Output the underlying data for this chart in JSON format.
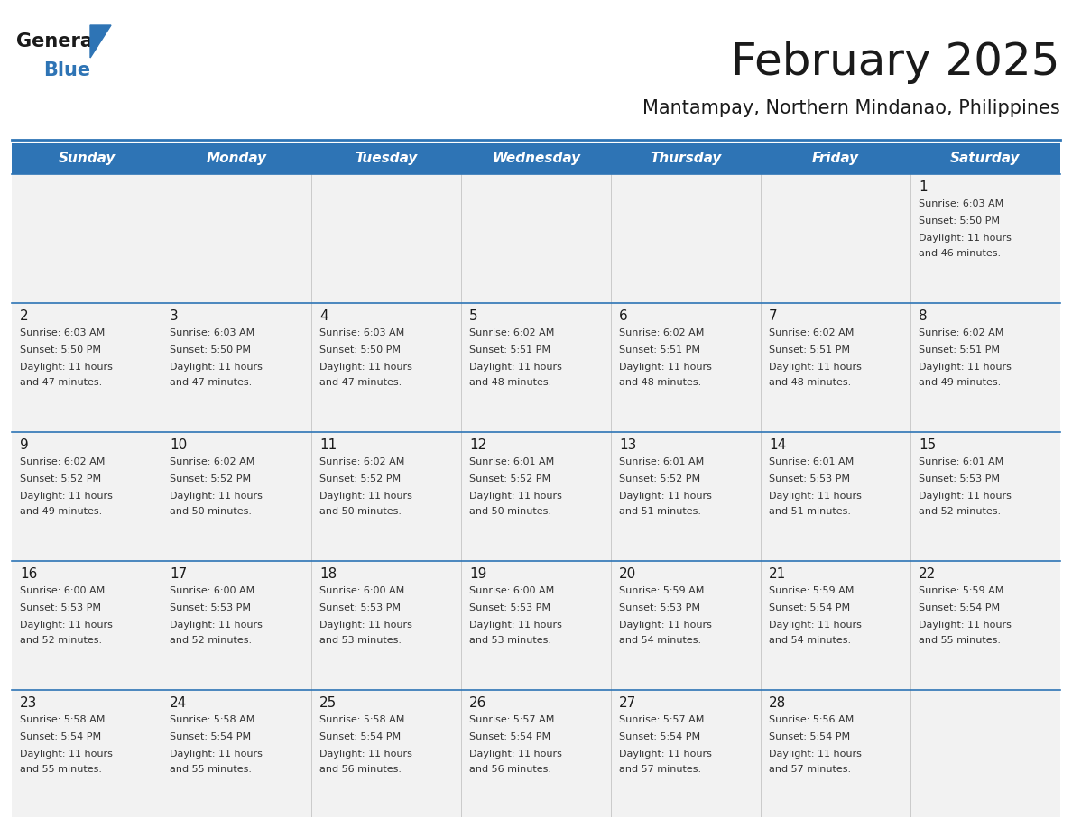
{
  "title": "February 2025",
  "subtitle": "Mantampay, Northern Mindanao, Philippines",
  "header_bg": "#2E74B5",
  "header_text_color": "#FFFFFF",
  "cell_bg": "#F2F2F2",
  "day_headers": [
    "Sunday",
    "Monday",
    "Tuesday",
    "Wednesday",
    "Thursday",
    "Friday",
    "Saturday"
  ],
  "title_color": "#1a1a1a",
  "subtitle_color": "#1a1a1a",
  "day_num_color": "#1a1a1a",
  "cell_text_color": "#333333",
  "logo_general_color": "#1a1a1a",
  "logo_blue_color": "#2E74B5",
  "separator_color": "#2E74B5",
  "line_color": "#2E74B5",
  "calendar": [
    [
      null,
      null,
      null,
      null,
      null,
      null,
      {
        "day": "1",
        "sunrise": "6:03 AM",
        "sunset": "5:50 PM",
        "daylight": "11 hours",
        "daylight2": "and 46 minutes."
      }
    ],
    [
      {
        "day": "2",
        "sunrise": "6:03 AM",
        "sunset": "5:50 PM",
        "daylight": "11 hours",
        "daylight2": "and 47 minutes."
      },
      {
        "day": "3",
        "sunrise": "6:03 AM",
        "sunset": "5:50 PM",
        "daylight": "11 hours",
        "daylight2": "and 47 minutes."
      },
      {
        "day": "4",
        "sunrise": "6:03 AM",
        "sunset": "5:50 PM",
        "daylight": "11 hours",
        "daylight2": "and 47 minutes."
      },
      {
        "day": "5",
        "sunrise": "6:02 AM",
        "sunset": "5:51 PM",
        "daylight": "11 hours",
        "daylight2": "and 48 minutes."
      },
      {
        "day": "6",
        "sunrise": "6:02 AM",
        "sunset": "5:51 PM",
        "daylight": "11 hours",
        "daylight2": "and 48 minutes."
      },
      {
        "day": "7",
        "sunrise": "6:02 AM",
        "sunset": "5:51 PM",
        "daylight": "11 hours",
        "daylight2": "and 48 minutes."
      },
      {
        "day": "8",
        "sunrise": "6:02 AM",
        "sunset": "5:51 PM",
        "daylight": "11 hours",
        "daylight2": "and 49 minutes."
      }
    ],
    [
      {
        "day": "9",
        "sunrise": "6:02 AM",
        "sunset": "5:52 PM",
        "daylight": "11 hours",
        "daylight2": "and 49 minutes."
      },
      {
        "day": "10",
        "sunrise": "6:02 AM",
        "sunset": "5:52 PM",
        "daylight": "11 hours",
        "daylight2": "and 50 minutes."
      },
      {
        "day": "11",
        "sunrise": "6:02 AM",
        "sunset": "5:52 PM",
        "daylight": "11 hours",
        "daylight2": "and 50 minutes."
      },
      {
        "day": "12",
        "sunrise": "6:01 AM",
        "sunset": "5:52 PM",
        "daylight": "11 hours",
        "daylight2": "and 50 minutes."
      },
      {
        "day": "13",
        "sunrise": "6:01 AM",
        "sunset": "5:52 PM",
        "daylight": "11 hours",
        "daylight2": "and 51 minutes."
      },
      {
        "day": "14",
        "sunrise": "6:01 AM",
        "sunset": "5:53 PM",
        "daylight": "11 hours",
        "daylight2": "and 51 minutes."
      },
      {
        "day": "15",
        "sunrise": "6:01 AM",
        "sunset": "5:53 PM",
        "daylight": "11 hours",
        "daylight2": "and 52 minutes."
      }
    ],
    [
      {
        "day": "16",
        "sunrise": "6:00 AM",
        "sunset": "5:53 PM",
        "daylight": "11 hours",
        "daylight2": "and 52 minutes."
      },
      {
        "day": "17",
        "sunrise": "6:00 AM",
        "sunset": "5:53 PM",
        "daylight": "11 hours",
        "daylight2": "and 52 minutes."
      },
      {
        "day": "18",
        "sunrise": "6:00 AM",
        "sunset": "5:53 PM",
        "daylight": "11 hours",
        "daylight2": "and 53 minutes."
      },
      {
        "day": "19",
        "sunrise": "6:00 AM",
        "sunset": "5:53 PM",
        "daylight": "11 hours",
        "daylight2": "and 53 minutes."
      },
      {
        "day": "20",
        "sunrise": "5:59 AM",
        "sunset": "5:53 PM",
        "daylight": "11 hours",
        "daylight2": "and 54 minutes."
      },
      {
        "day": "21",
        "sunrise": "5:59 AM",
        "sunset": "5:54 PM",
        "daylight": "11 hours",
        "daylight2": "and 54 minutes."
      },
      {
        "day": "22",
        "sunrise": "5:59 AM",
        "sunset": "5:54 PM",
        "daylight": "11 hours",
        "daylight2": "and 55 minutes."
      }
    ],
    [
      {
        "day": "23",
        "sunrise": "5:58 AM",
        "sunset": "5:54 PM",
        "daylight": "11 hours",
        "daylight2": "and 55 minutes."
      },
      {
        "day": "24",
        "sunrise": "5:58 AM",
        "sunset": "5:54 PM",
        "daylight": "11 hours",
        "daylight2": "and 55 minutes."
      },
      {
        "day": "25",
        "sunrise": "5:58 AM",
        "sunset": "5:54 PM",
        "daylight": "11 hours",
        "daylight2": "and 56 minutes."
      },
      {
        "day": "26",
        "sunrise": "5:57 AM",
        "sunset": "5:54 PM",
        "daylight": "11 hours",
        "daylight2": "and 56 minutes."
      },
      {
        "day": "27",
        "sunrise": "5:57 AM",
        "sunset": "5:54 PM",
        "daylight": "11 hours",
        "daylight2": "and 57 minutes."
      },
      {
        "day": "28",
        "sunrise": "5:56 AM",
        "sunset": "5:54 PM",
        "daylight": "11 hours",
        "daylight2": "and 57 minutes."
      },
      null
    ]
  ]
}
